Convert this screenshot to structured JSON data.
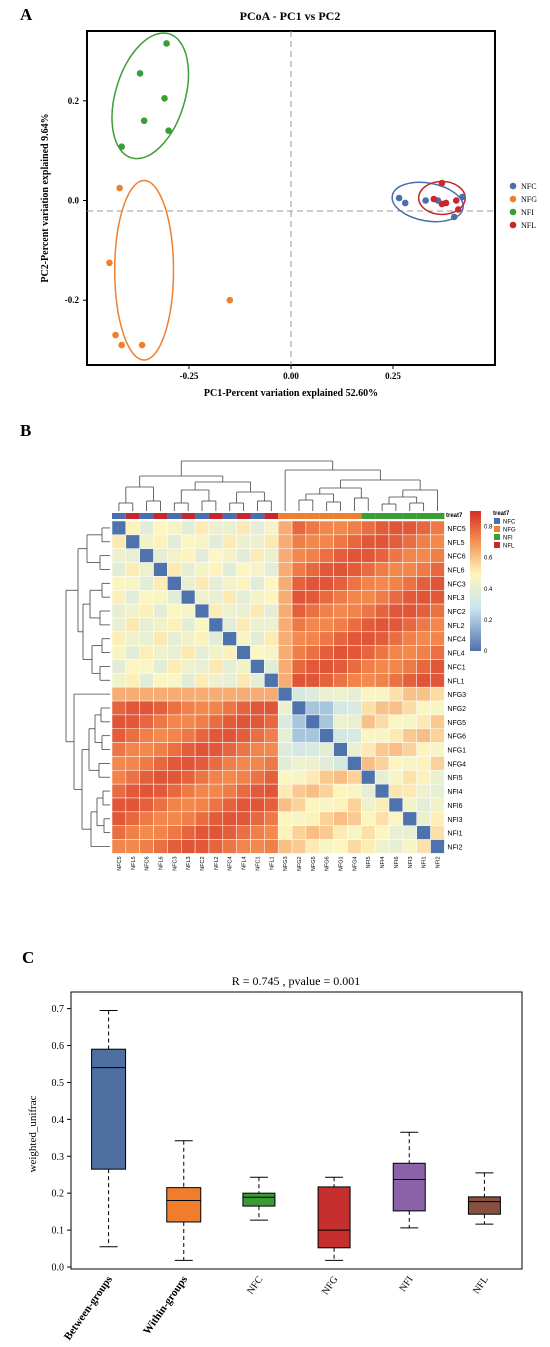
{
  "panels": {
    "a": "A",
    "b": "B",
    "c": "C"
  },
  "colors": {
    "NFC": "#4a6fb0",
    "NFG": "#f07f2e",
    "NFI": "#3a9d35",
    "NFL": "#c6282b"
  },
  "chart_data": [
    {
      "type": "scatter",
      "title": "PCoA - PC1 vs PC2",
      "xlabel": "PC1-Percent variation explained 52.60%",
      "ylabel": "PC2-Percent variation explained 9.64%",
      "xlim": [
        -0.5,
        0.5
      ],
      "ylim": [
        -0.33,
        0.34
      ],
      "xticks": [
        -0.25,
        0.0,
        0.25
      ],
      "xtick_labels": [
        "-0.25",
        "0.00",
        "0.25"
      ],
      "yticks": [
        -0.2,
        0.0,
        0.2
      ],
      "ytick_labels": [
        "-0.2",
        "0.0",
        "0.2"
      ],
      "legend": [
        "NFC",
        "NFG",
        "NFI",
        "NFL"
      ],
      "legend_position": "right",
      "series": [
        {
          "name": "NFC",
          "color": "#4a6fb0",
          "points": [
            [
              0.265,
              0.005
            ],
            [
              0.28,
              -0.005
            ],
            [
              0.33,
              0.0
            ],
            [
              0.36,
              0.0
            ],
            [
              0.4,
              -0.033
            ],
            [
              0.42,
              0.007
            ]
          ]
        },
        {
          "name": "NFG",
          "color": "#f07f2e",
          "points": [
            [
              -0.42,
              0.025
            ],
            [
              -0.445,
              -0.125
            ],
            [
              -0.43,
              -0.27
            ],
            [
              -0.415,
              -0.29
            ],
            [
              -0.365,
              -0.29
            ],
            [
              -0.15,
              -0.2
            ]
          ]
        },
        {
          "name": "NFI",
          "color": "#3a9d35",
          "points": [
            [
              -0.305,
              0.315
            ],
            [
              -0.37,
              0.255
            ],
            [
              -0.31,
              0.205
            ],
            [
              -0.36,
              0.16
            ],
            [
              -0.3,
              0.14
            ],
            [
              -0.415,
              0.108
            ]
          ]
        },
        {
          "name": "NFL",
          "color": "#c6282b",
          "points": [
            [
              0.37,
              0.035
            ],
            [
              0.35,
              0.003
            ],
            [
              0.37,
              -0.007
            ],
            [
              0.38,
              -0.005
            ],
            [
              0.405,
              0.0
            ],
            [
              0.41,
              -0.018
            ]
          ]
        }
      ],
      "ellipses": [
        {
          "group": "NFI",
          "cx": -0.345,
          "cy": 0.21,
          "rx": 0.085,
          "ry": 0.13,
          "rotate": 17
        },
        {
          "group": "NFG",
          "cx": -0.36,
          "cy": -0.14,
          "rx": 0.072,
          "ry": 0.18,
          "rotate": 0
        },
        {
          "group": "NFC",
          "cx": 0.335,
          "cy": -0.003,
          "rx": 0.088,
          "ry": 0.038,
          "rotate": 10
        },
        {
          "group": "NFL",
          "cx": 0.37,
          "cy": 0.005,
          "rx": 0.057,
          "ry": 0.033,
          "rotate": 0
        }
      ]
    },
    {
      "type": "heatmap",
      "legend_title": "treat7",
      "legend": [
        "NFC",
        "NFG",
        "NFI",
        "NFL"
      ],
      "colorbar_ticks": [
        "0",
        "0.2",
        "0.4",
        "0.6",
        "0.8"
      ],
      "column_labels": [
        "NFC5",
        "NFL5",
        "NFC6",
        "NFL6",
        "NFC3",
        "NFL3",
        "NFC2",
        "NFL2",
        "NFC4",
        "NFL4",
        "NFC1",
        "NFL1",
        "NFG3",
        "NFG2",
        "NFG5",
        "NFG6",
        "NFG1",
        "NFG4",
        "NFI5",
        "NFI4",
        "NFI6",
        "NFI3",
        "NFI1",
        "NFI2"
      ],
      "row_labels": [
        "NFC5",
        "NFL5",
        "NFC6",
        "NFL6",
        "NFC3",
        "NFL3",
        "NFC2",
        "NFL2",
        "NFC4",
        "NFL4",
        "NFC1",
        "NFL1",
        "NFG3",
        "NFG2",
        "NFG5",
        "NFG6",
        "NFG1",
        "NFG4",
        "NFI5",
        "NFI4",
        "NFI6",
        "NFI3",
        "NFI1",
        "NFI2"
      ],
      "column_groups": [
        "NFC",
        "NFL",
        "NFC",
        "NFL",
        "NFC",
        "NFL",
        "NFC",
        "NFL",
        "NFC",
        "NFL",
        "NFC",
        "NFL",
        "NFG",
        "NFG",
        "NFG",
        "NFG",
        "NFG",
        "NFG",
        "NFI",
        "NFI",
        "NFI",
        "NFI",
        "NFI",
        "NFI"
      ],
      "note": "cell values estimated from colour (distance matrix, 0 on diagonal)"
    },
    {
      "type": "box",
      "title": "R = 0.745 , pvalue = 0.001",
      "ylabel": "weighted_unifrac",
      "ylim": [
        0,
        0.75
      ],
      "yticks": [
        0.0,
        0.1,
        0.2,
        0.3,
        0.4,
        0.5,
        0.6,
        0.7
      ],
      "ytick_labels": [
        "0.0",
        "0.1",
        "0.2",
        "0.3",
        "0.4",
        "0.5",
        "0.6",
        "0.7"
      ],
      "categories": [
        "Between-groups",
        "Within-groups",
        "NFC",
        "NFG",
        "NFI",
        "NFL"
      ],
      "boxes": [
        {
          "name": "Between-groups",
          "min": 0.055,
          "q1": 0.265,
          "median": 0.54,
          "q3": 0.59,
          "max": 0.695,
          "color": "#4e6f9f"
        },
        {
          "name": "Within-groups",
          "min": 0.018,
          "q1": 0.122,
          "median": 0.18,
          "q3": 0.215,
          "max": 0.342,
          "color": "#f07d2e"
        },
        {
          "name": "NFC",
          "min": 0.127,
          "q1": 0.165,
          "median": 0.189,
          "q3": 0.2,
          "max": 0.243,
          "color": "#3a9a35"
        },
        {
          "name": "NFG",
          "min": 0.018,
          "q1": 0.052,
          "median": 0.1,
          "q3": 0.217,
          "max": 0.243,
          "color": "#c5302e"
        },
        {
          "name": "NFI",
          "min": 0.106,
          "q1": 0.152,
          "median": 0.237,
          "q3": 0.281,
          "max": 0.365,
          "color": "#8b62a8"
        },
        {
          "name": "NFL",
          "min": 0.116,
          "q1": 0.143,
          "median": 0.177,
          "q3": 0.19,
          "max": 0.255,
          "color": "#86513f"
        }
      ]
    }
  ]
}
